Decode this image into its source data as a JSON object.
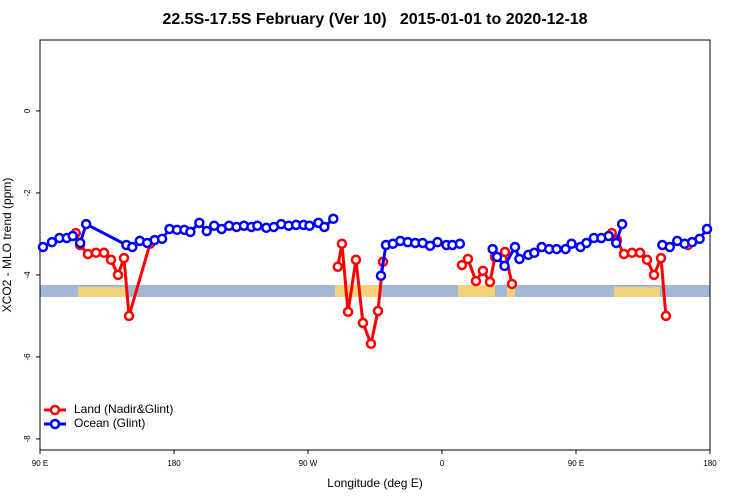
{
  "chart_data": {
    "type": "line",
    "title": "22.5S-17.5S February (Ver 10)   2015-01-01 to 2020-12-18",
    "xlabel": "Longitude (deg E)",
    "ylabel": "XCO2 - MLO trend (ppm)",
    "xlim": [
      90,
      540
    ],
    "xticks": [
      {
        "value": 90,
        "label": "90 E"
      },
      {
        "value": 180,
        "label": "180"
      },
      {
        "value": 270,
        "label": "90 W"
      },
      {
        "value": 360,
        "label": "0"
      },
      {
        "value": 450,
        "label": "90 E"
      },
      {
        "value": 540,
        "label": "180"
      }
    ],
    "ylim": [
      -8.27,
      1.73
    ],
    "yticks": [
      0,
      -2,
      -4,
      -6,
      -8
    ],
    "legend": "bottom-left",
    "series": [
      {
        "name": "Land (Nadir&Glint)",
        "color": "#ff0000",
        "x": [
          114,
          116.9,
          122.2,
          127.6,
          133,
          137.7,
          142.4,
          146.4,
          149.8,
          163.9,
          250,
          290,
          292.8,
          296.9,
          302.2,
          306.9,
          312.3,
          317,
          320.4,
          340,
          373.4,
          377.4,
          382.8,
          387.5,
          392.2,
          395.6,
          402.3,
          407,
          450,
          474,
          477.5,
          482.2,
          487.6,
          493,
          497.7,
          502.4,
          507.1,
          510.4,
          520,
          525.2
        ],
        "values": [
          -2.98,
          -3.27,
          -3.49,
          -3.46,
          -3.46,
          -3.63,
          -4.0,
          -3.59,
          -5.0,
          -3.24,
          null,
          -3.8,
          -3.24,
          -4.9,
          -3.63,
          -5.17,
          -5.68,
          -4.88,
          -3.68,
          null,
          -3.76,
          -3.61,
          -4.15,
          -3.9,
          -4.17,
          -3.56,
          -3.44,
          -4.22,
          null,
          -2.98,
          -3.15,
          -3.49,
          -3.46,
          -3.46,
          -3.63,
          -4.0,
          -3.59,
          -5.0,
          null,
          -3.27
        ]
      },
      {
        "name": "Ocean (Glint)",
        "color": "#0000ff",
        "x": [
          92,
          98,
          103,
          108,
          112,
          117,
          121,
          148,
          152,
          157,
          162,
          167,
          172,
          177,
          182,
          187,
          191,
          197,
          202,
          207,
          212,
          217,
          222,
          227,
          232,
          236,
          242,
          247,
          252,
          257,
          262,
          267,
          271,
          277,
          281,
          287,
          300,
          319,
          322.4,
          327,
          332,
          337,
          342,
          347,
          352,
          357,
          363,
          367,
          372,
          380,
          394,
          397,
          402,
          409,
          412,
          418,
          422,
          427,
          432,
          437,
          443,
          447,
          453,
          457,
          462,
          467,
          472,
          477,
          481,
          500,
          508,
          513,
          518,
          523,
          528,
          533,
          538
        ],
        "values": [
          -3.32,
          -3.2,
          -3.1,
          -3.1,
          -3.05,
          -3.22,
          -2.76,
          -3.27,
          -3.32,
          -3.17,
          -3.22,
          -3.15,
          -3.12,
          -2.88,
          -2.9,
          -2.9,
          -2.95,
          -2.73,
          -2.93,
          -2.8,
          -2.88,
          -2.8,
          -2.83,
          -2.8,
          -2.83,
          -2.8,
          -2.85,
          -2.83,
          -2.76,
          -2.8,
          -2.78,
          -2.78,
          -2.8,
          -2.73,
          -2.83,
          -2.63,
          null,
          -4.02,
          -3.27,
          -3.24,
          -3.17,
          -3.2,
          -3.22,
          -3.22,
          -3.29,
          -3.2,
          -3.27,
          -3.27,
          -3.24,
          null,
          -3.37,
          -3.56,
          -3.78,
          -3.32,
          -3.61,
          -3.51,
          -3.46,
          -3.32,
          -3.37,
          -3.37,
          -3.37,
          -3.24,
          -3.32,
          -3.22,
          -3.1,
          -3.1,
          -3.05,
          -3.22,
          -2.76,
          null,
          -3.27,
          -3.32,
          -3.17,
          -3.24,
          -3.2,
          -3.12,
          -2.88
        ]
      }
    ]
  }
}
